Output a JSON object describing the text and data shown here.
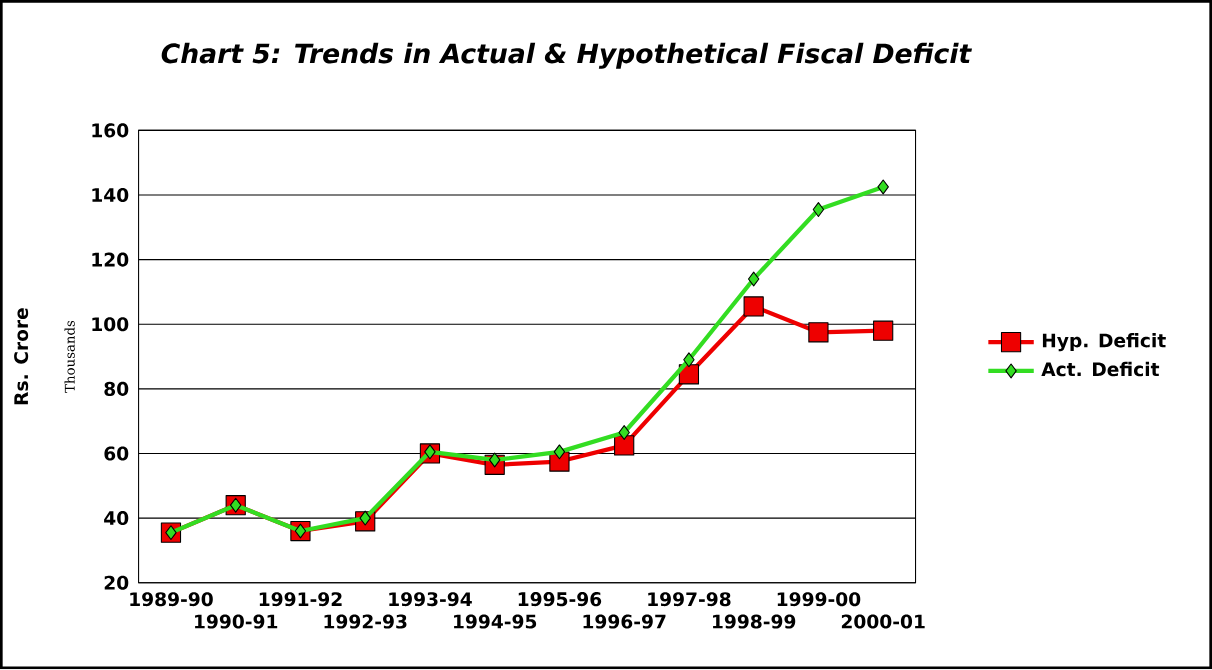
{
  "chart_data": {
    "type": "line",
    "title": "Chart 5: Trends in Actual & Hypothetical Fiscal Deficit",
    "ylabel": "Rs. Crore",
    "annotations": [
      "Thousands"
    ],
    "categories": [
      "1989-90",
      "1990-91",
      "1991-92",
      "1992-93",
      "1993-94",
      "1994-95",
      "1995-96",
      "1996-97",
      "1997-98",
      "1998-99",
      "1999-00",
      "2000-01"
    ],
    "series": [
      {
        "name": "Hyp. Deficit",
        "color": "#ee0000",
        "marker": "square",
        "values": [
          35.5,
          44,
          36,
          39,
          60,
          56.5,
          57.5,
          62.5,
          84.5,
          105.5,
          97.5,
          98
        ]
      },
      {
        "name": "Act. Deficit",
        "color": "#33dd22",
        "marker": "diamond",
        "values": [
          35.5,
          44,
          36,
          40,
          60.5,
          58,
          60.5,
          66.5,
          89,
          114,
          135.5,
          142.5
        ]
      }
    ],
    "ylim": [
      20,
      160
    ],
    "yticks": [
      20,
      40,
      60,
      80,
      100,
      120,
      140,
      160
    ],
    "grid": "y",
    "legend": "right"
  }
}
